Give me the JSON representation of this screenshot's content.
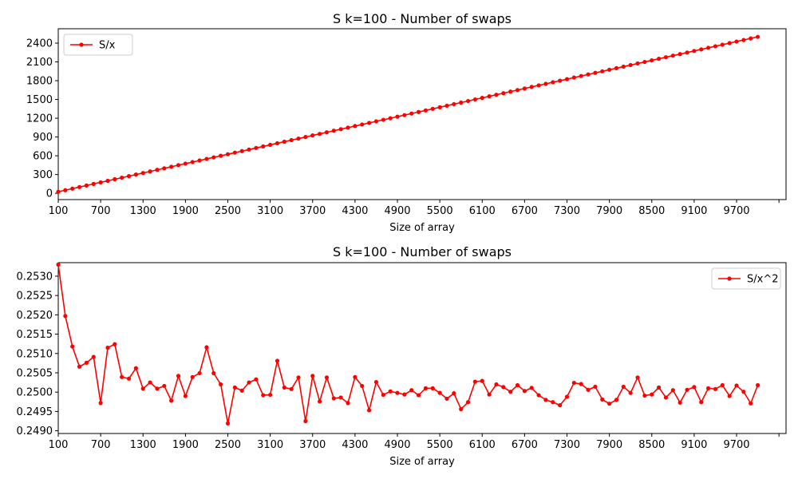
{
  "chart_data": [
    {
      "type": "line",
      "title": "S k=100 - Number of swaps",
      "xlabel": "Size of array",
      "ylabel": "",
      "xlim": [
        100,
        10400
      ],
      "ylim": [
        -100,
        2630
      ],
      "xticks": [
        "100",
        "700",
        "1300",
        "1900",
        "2500",
        "3100",
        "3700",
        "4300",
        "4900",
        "5500",
        "6100",
        "6700",
        "7300",
        "7900",
        "8500",
        "9100",
        "9700",
        ""
      ],
      "yticks": [
        "0",
        "300",
        "600",
        "900",
        "1200",
        "1500",
        "1800",
        "2100",
        "2400"
      ],
      "legend_position": "top-left",
      "color": "#ff0000",
      "series": [
        {
          "name": "S/x",
          "x": [
            100,
            200,
            300,
            400,
            500,
            600,
            700,
            800,
            900,
            1000,
            1100,
            1200,
            1300,
            1400,
            1500,
            1600,
            1700,
            1800,
            1900,
            2000,
            2100,
            2200,
            2300,
            2400,
            2500,
            2600,
            2700,
            2800,
            2900,
            3000,
            3100,
            3200,
            3300,
            3400,
            3500,
            3600,
            3700,
            3800,
            3900,
            4000,
            4100,
            4200,
            4300,
            4400,
            4500,
            4600,
            4700,
            4800,
            4900,
            5000,
            5100,
            5200,
            5300,
            5400,
            5500,
            5600,
            5700,
            5800,
            5900,
            6000,
            6100,
            6200,
            6300,
            6400,
            6500,
            6600,
            6700,
            6800,
            6900,
            7000,
            7100,
            7200,
            7300,
            7400,
            7500,
            7600,
            7700,
            7800,
            7900,
            8000,
            8100,
            8200,
            8300,
            8400,
            8500,
            8600,
            8700,
            8800,
            8900,
            9000,
            9100,
            9200,
            9300,
            9400,
            9500,
            9600,
            9700,
            9800,
            9900,
            10000
          ],
          "values": [
            25,
            50,
            75,
            100,
            125,
            150,
            175,
            200,
            225,
            250,
            275,
            300,
            325,
            350,
            375,
            400,
            425,
            450,
            475,
            500,
            525,
            550,
            575,
            600,
            625,
            650,
            675,
            700,
            725,
            750,
            775,
            800,
            825,
            850,
            875,
            900,
            925,
            950,
            975,
            1000,
            1025,
            1050,
            1075,
            1100,
            1125,
            1150,
            1175,
            1200,
            1225,
            1250,
            1275,
            1300,
            1325,
            1350,
            1375,
            1400,
            1425,
            1450,
            1475,
            1500,
            1525,
            1550,
            1575,
            1600,
            1625,
            1650,
            1675,
            1700,
            1725,
            1750,
            1775,
            1800,
            1825,
            1850,
            1875,
            1900,
            1925,
            1950,
            1975,
            2000,
            2025,
            2050,
            2075,
            2100,
            2125,
            2150,
            2175,
            2200,
            2225,
            2250,
            2275,
            2300,
            2325,
            2350,
            2375,
            2400,
            2425,
            2450,
            2475,
            2500
          ]
        }
      ]
    },
    {
      "type": "line",
      "title": "S k=100 - Number of swaps",
      "xlabel": "Size of array",
      "ylabel": "",
      "xlim": [
        100,
        10400
      ],
      "ylim": [
        0.24893,
        0.25335
      ],
      "xticks": [
        "100",
        "700",
        "1300",
        "1900",
        "2500",
        "3100",
        "3700",
        "4300",
        "4900",
        "5500",
        "6100",
        "6700",
        "7300",
        "7900",
        "8500",
        "9100",
        "9700",
        ""
      ],
      "yticks": [
        "0.2490",
        "0.2495",
        "0.2500",
        "0.2505",
        "0.2510",
        "0.2515",
        "0.2520",
        "0.2525",
        "0.2530"
      ],
      "legend_position": "top-right",
      "color": "#ff0000",
      "series": [
        {
          "name": "S/x^2",
          "x": [
            100,
            200,
            300,
            400,
            500,
            600,
            700,
            800,
            900,
            1000,
            1100,
            1200,
            1300,
            1400,
            1500,
            1600,
            1700,
            1800,
            1900,
            2000,
            2100,
            2200,
            2300,
            2400,
            2500,
            2600,
            2700,
            2800,
            2900,
            3000,
            3100,
            3200,
            3300,
            3400,
            3500,
            3600,
            3700,
            3800,
            3900,
            4000,
            4100,
            4200,
            4300,
            4400,
            4500,
            4600,
            4700,
            4800,
            4900,
            5000,
            5100,
            5200,
            5300,
            5400,
            5500,
            5600,
            5700,
            5800,
            5900,
            6000,
            6100,
            6200,
            6300,
            6400,
            6500,
            6600,
            6700,
            6800,
            6900,
            7000,
            7100,
            7200,
            7300,
            7400,
            7500,
            7600,
            7700,
            7800,
            7900,
            8000,
            8100,
            8200,
            8300,
            8400,
            8500,
            8600,
            8700,
            8800,
            8900,
            9000,
            9100,
            9200,
            9300,
            9400,
            9500,
            9600,
            9700,
            9800,
            9900,
            10000
          ],
          "values": [
            0.2533,
            0.25197,
            0.25118,
            0.25066,
            0.25076,
            0.25091,
            0.24972,
            0.25115,
            0.25124,
            0.25039,
            0.25035,
            0.25062,
            0.25009,
            0.25025,
            0.25009,
            0.25016,
            0.24978,
            0.25042,
            0.2499,
            0.25039,
            0.25049,
            0.25116,
            0.25049,
            0.2502,
            0.24919,
            0.25012,
            0.25004,
            0.25025,
            0.25033,
            0.24992,
            0.24993,
            0.25081,
            0.25012,
            0.25008,
            0.25038,
            0.24925,
            0.25042,
            0.24976,
            0.25038,
            0.24984,
            0.24986,
            0.24972,
            0.25039,
            0.25016,
            0.24953,
            0.25026,
            0.24993,
            0.25002,
            0.24998,
            0.24994,
            0.25005,
            0.24992,
            0.2501,
            0.2501,
            0.24998,
            0.24983,
            0.24997,
            0.24956,
            0.24974,
            0.25027,
            0.25029,
            0.24994,
            0.2502,
            0.25013,
            0.25001,
            0.25018,
            0.25003,
            0.25011,
            0.24992,
            0.2498,
            0.24974,
            0.24966,
            0.24988,
            0.25024,
            0.25021,
            0.25006,
            0.25014,
            0.24981,
            0.2497,
            0.2498,
            0.25014,
            0.24998,
            0.25038,
            0.24991,
            0.24994,
            0.25012,
            0.24986,
            0.25005,
            0.24973,
            0.25006,
            0.25013,
            0.24974,
            0.2501,
            0.25008,
            0.25018,
            0.2499,
            0.25017,
            0.25001,
            0.24971,
            0.25018
          ]
        }
      ]
    }
  ]
}
